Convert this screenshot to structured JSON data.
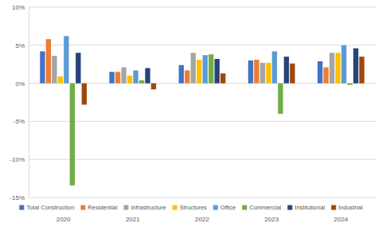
{
  "chart_data": {
    "type": "bar",
    "categories": [
      "2020",
      "2021",
      "2022",
      "2023",
      "2024"
    ],
    "series": [
      {
        "name": "Total Construction",
        "color": "#4472c4",
        "values": [
          4.2,
          1.5,
          2.4,
          3.0,
          2.9
        ]
      },
      {
        "name": "Residential",
        "color": "#ed7d31",
        "values": [
          5.8,
          1.5,
          1.7,
          3.1,
          2.1
        ]
      },
      {
        "name": "Infrastructure",
        "color": "#a5a5a5",
        "values": [
          3.6,
          2.1,
          4.0,
          2.7,
          4.0
        ]
      },
      {
        "name": "Structures",
        "color": "#ffc000",
        "values": [
          0.9,
          1.0,
          3.1,
          2.7,
          4.0
        ]
      },
      {
        "name": "Office",
        "color": "#5b9bd5",
        "values": [
          6.2,
          1.7,
          3.7,
          4.2,
          5.0
        ]
      },
      {
        "name": "Commercial",
        "color": "#70ad47",
        "values": [
          -13.4,
          0.4,
          3.8,
          -4.0,
          -0.2
        ]
      },
      {
        "name": "Institutional",
        "color": "#264478",
        "values": [
          4.0,
          2.0,
          3.2,
          3.5,
          4.6
        ]
      },
      {
        "name": "Industrial",
        "color": "#9e480e",
        "values": [
          -2.8,
          -0.8,
          1.3,
          2.6,
          3.5
        ]
      }
    ],
    "ylim": [
      -15,
      10
    ],
    "yticks": [
      {
        "value": -15,
        "label": "-15%"
      },
      {
        "value": -10,
        "label": "-10%"
      },
      {
        "value": -5,
        "label": "-5%"
      },
      {
        "value": 0,
        "label": "0%"
      },
      {
        "value": 5,
        "label": "5%"
      },
      {
        "value": 10,
        "label": "10%"
      }
    ],
    "grid": true,
    "legend": "bottom"
  }
}
